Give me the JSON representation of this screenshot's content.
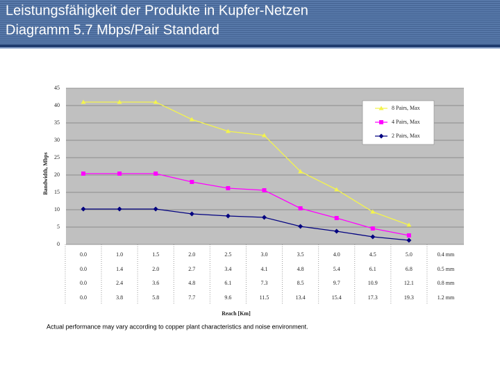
{
  "header": {
    "title_lines": [
      "Leistungsfähigkeit der Produkte in Kupfer-Netzen",
      "Diagramm 5.7 Mbps/Pair Standard"
    ]
  },
  "chart_data": {
    "type": "line",
    "ylabel": "Bandwidth, Mbps",
    "xlabel": "Reach [Km]",
    "categories": [
      "0.0",
      "1.0",
      "1.5",
      "2.0",
      "2.5",
      "3.0",
      "3.5",
      "4.0",
      "4.5",
      "5.0"
    ],
    "series": [
      {
        "name": "8 Pairs, Max",
        "color": "#f4f44c",
        "marker": "triangle",
        "values": [
          41,
          41,
          41,
          36,
          32.6,
          31.4,
          21,
          15.8,
          9.4,
          5.6
        ]
      },
      {
        "name": "4 Pairs, Max",
        "color": "#ff00ff",
        "marker": "square",
        "values": [
          20.4,
          20.4,
          20.4,
          18,
          16.2,
          15.6,
          10.4,
          7.6,
          4.6,
          2.6
        ]
      },
      {
        "name": "2 Pairs, Max",
        "color": "#000080",
        "marker": "diamond",
        "values": [
          10.2,
          10.2,
          10.2,
          8.8,
          8.2,
          7.8,
          5.2,
          3.8,
          2.2,
          1.2
        ]
      }
    ],
    "ylim": [
      0,
      45
    ],
    "yticks": [
      0,
      5,
      10,
      15,
      20,
      25,
      30,
      35,
      40,
      45
    ],
    "grid": true,
    "legend": "upper right",
    "gauge_labels": [
      "0.4 mm",
      "0.5 mm",
      "0.8 mm",
      "1.2 mm"
    ],
    "reach_rows": [
      [
        "0.0",
        "1.4",
        "2.0",
        "2.7",
        "3.4",
        "4.1",
        "4.8",
        "5.4",
        "6.1",
        "6.8"
      ],
      [
        "0.0",
        "2.4",
        "3.6",
        "4.8",
        "6.1",
        "7.3",
        "8.5",
        "9.7",
        "10.9",
        "12.1"
      ],
      [
        "0.0",
        "3.8",
        "5.8",
        "7.7",
        "9.6",
        "11.5",
        "13.4",
        "15.4",
        "17.3",
        "19.3"
      ]
    ],
    "note": "Actual performance may vary according to copper plant characteristics and noise environment."
  }
}
